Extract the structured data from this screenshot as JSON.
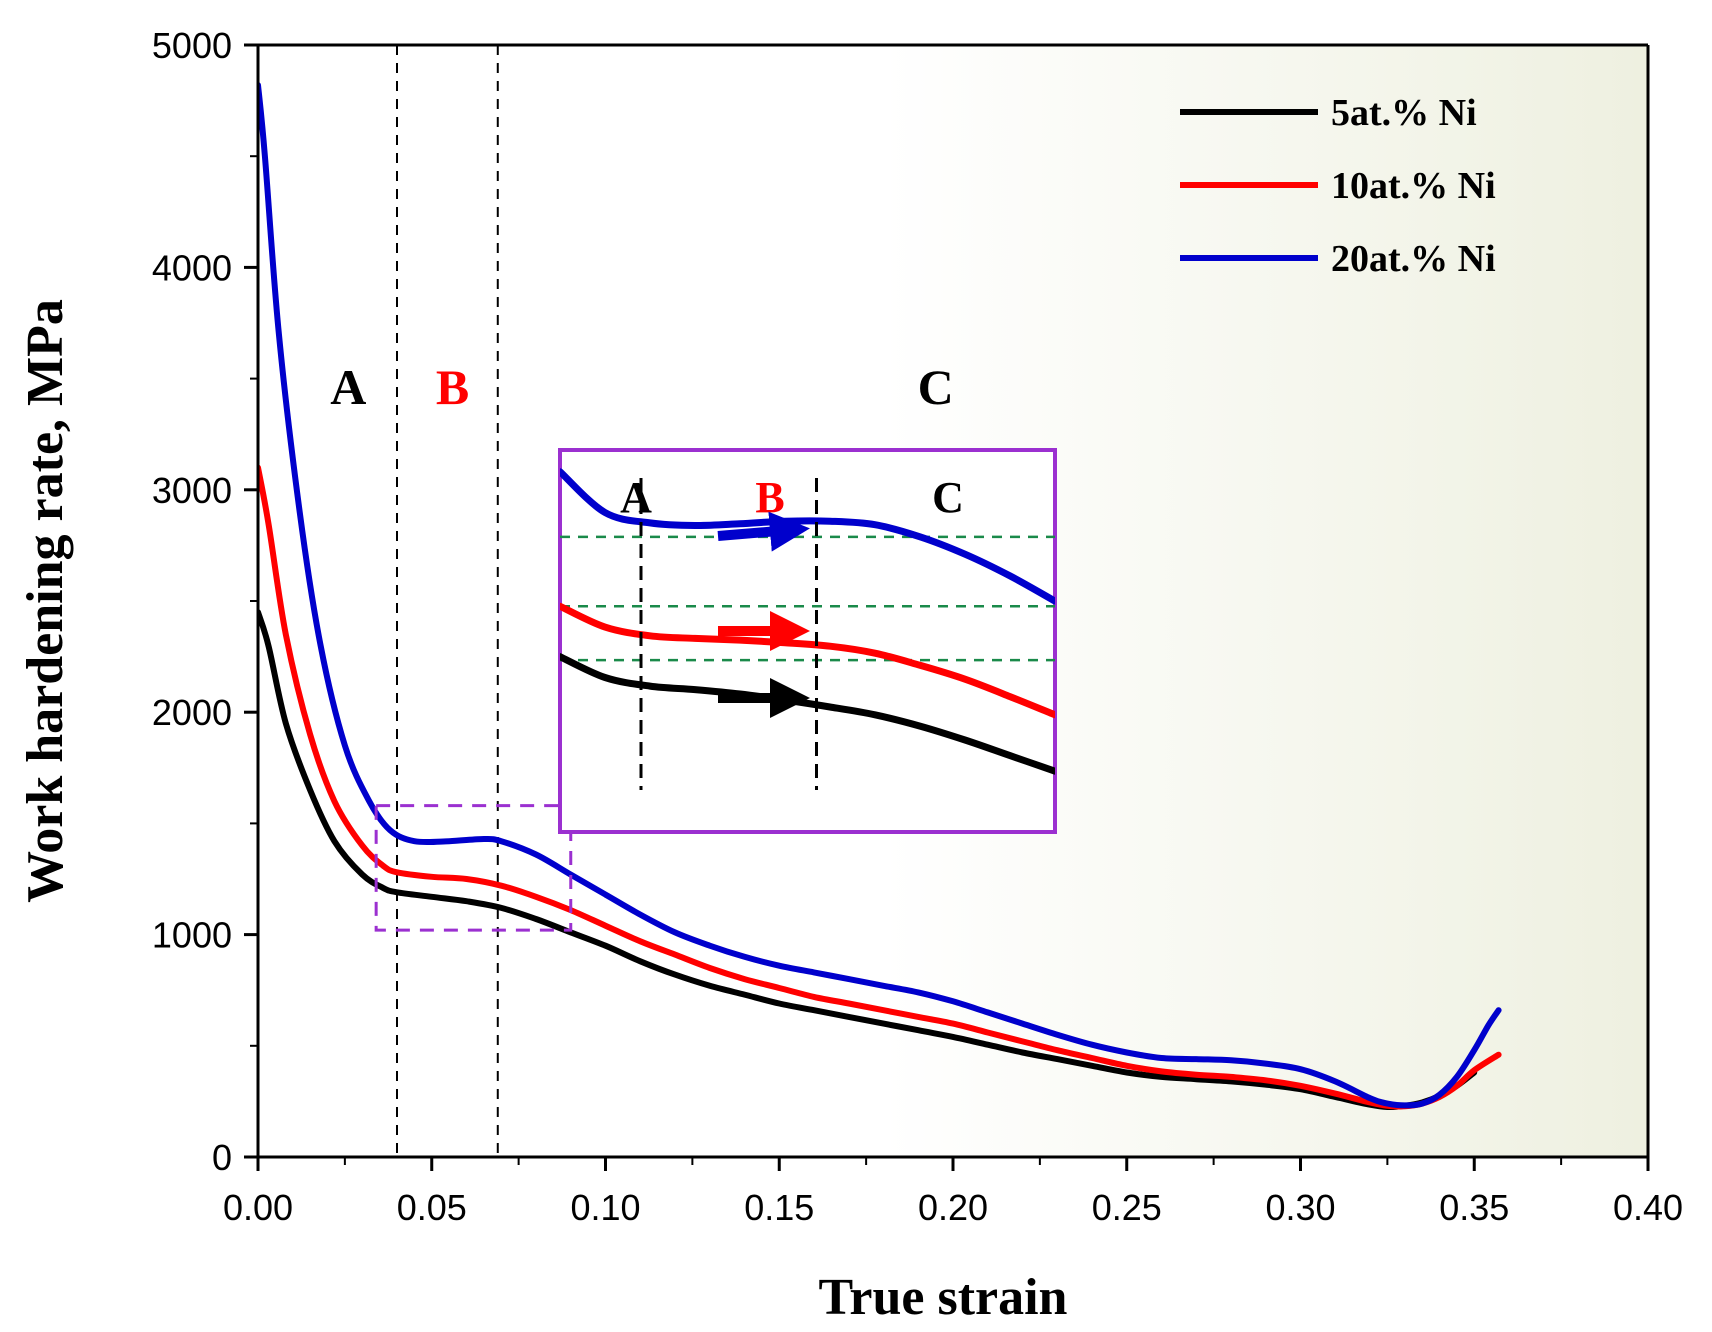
{
  "chart_data": {
    "type": "line",
    "xlabel": "True strain",
    "ylabel": "Work hardening rate, MPa",
    "xlim": [
      0,
      0.4
    ],
    "ylim": [
      0,
      5000
    ],
    "x_ticks": [
      "0.00",
      "0.05",
      "0.10",
      "0.15",
      "0.20",
      "0.25",
      "0.30",
      "0.35",
      "0.40"
    ],
    "y_ticks": [
      "0",
      "1000",
      "2000",
      "3000",
      "4000",
      "5000"
    ],
    "x_tick_values": [
      0,
      0.05,
      0.1,
      0.15,
      0.2,
      0.25,
      0.3,
      0.35,
      0.4
    ],
    "y_tick_values": [
      0,
      1000,
      2000,
      3000,
      4000,
      5000
    ],
    "legend_position": "top-right",
    "region_boundaries": [
      0.04,
      0.069
    ],
    "regions": [
      {
        "label": "A",
        "color": "#000000",
        "x": 0.026
      },
      {
        "label": "B",
        "color": "#ff0000",
        "x": 0.056
      },
      {
        "label": "C",
        "color": "#000000",
        "x": 0.195
      }
    ],
    "series": [
      {
        "name": "5at.% Ni",
        "color": "#000000",
        "x": [
          0,
          0.003,
          0.008,
          0.015,
          0.022,
          0.03,
          0.036,
          0.04,
          0.05,
          0.06,
          0.07,
          0.08,
          0.09,
          0.1,
          0.11,
          0.12,
          0.13,
          0.14,
          0.15,
          0.16,
          0.17,
          0.18,
          0.19,
          0.2,
          0.21,
          0.22,
          0.23,
          0.24,
          0.25,
          0.26,
          0.27,
          0.28,
          0.29,
          0.3,
          0.31,
          0.32,
          0.325,
          0.33,
          0.335,
          0.34,
          0.345,
          0.35
        ],
        "y": [
          2450,
          2300,
          1950,
          1650,
          1420,
          1270,
          1210,
          1190,
          1170,
          1150,
          1120,
          1070,
          1010,
          950,
          880,
          820,
          770,
          730,
          690,
          660,
          630,
          600,
          570,
          540,
          505,
          470,
          440,
          410,
          380,
          360,
          350,
          340,
          325,
          305,
          270,
          235,
          225,
          230,
          245,
          275,
          320,
          380
        ]
      },
      {
        "name": "10at.% Ni",
        "color": "#ff0000",
        "x": [
          0,
          0.003,
          0.008,
          0.015,
          0.022,
          0.03,
          0.036,
          0.04,
          0.05,
          0.06,
          0.07,
          0.08,
          0.09,
          0.1,
          0.11,
          0.12,
          0.13,
          0.14,
          0.15,
          0.16,
          0.17,
          0.18,
          0.19,
          0.2,
          0.21,
          0.22,
          0.23,
          0.24,
          0.25,
          0.26,
          0.27,
          0.28,
          0.29,
          0.3,
          0.31,
          0.32,
          0.325,
          0.33,
          0.335,
          0.34,
          0.345,
          0.35,
          0.357
        ],
        "y": [
          3100,
          2850,
          2350,
          1900,
          1600,
          1400,
          1310,
          1280,
          1260,
          1250,
          1220,
          1170,
          1110,
          1040,
          970,
          910,
          850,
          800,
          760,
          720,
          690,
          660,
          630,
          600,
          560,
          520,
          480,
          445,
          410,
          385,
          370,
          360,
          345,
          320,
          285,
          245,
          230,
          228,
          240,
          270,
          320,
          390,
          460
        ]
      },
      {
        "name": "20at.% Ni",
        "color": "#0000cc",
        "x": [
          0,
          0.002,
          0.006,
          0.012,
          0.018,
          0.025,
          0.032,
          0.038,
          0.045,
          0.055,
          0.065,
          0.07,
          0.08,
          0.09,
          0.1,
          0.11,
          0.12,
          0.13,
          0.14,
          0.15,
          0.16,
          0.17,
          0.18,
          0.19,
          0.2,
          0.21,
          0.22,
          0.23,
          0.24,
          0.25,
          0.26,
          0.27,
          0.28,
          0.29,
          0.3,
          0.31,
          0.32,
          0.325,
          0.33,
          0.335,
          0.34,
          0.345,
          0.35,
          0.354,
          0.357
        ],
        "y": [
          4820,
          4500,
          3700,
          2900,
          2300,
          1850,
          1600,
          1470,
          1420,
          1420,
          1430,
          1420,
          1360,
          1270,
          1180,
          1090,
          1010,
          950,
          900,
          860,
          830,
          800,
          770,
          740,
          700,
          650,
          600,
          550,
          505,
          470,
          445,
          440,
          435,
          420,
          395,
          340,
          265,
          240,
          232,
          240,
          280,
          360,
          480,
          590,
          660
        ]
      }
    ],
    "inset": {
      "regions": [
        {
          "label": "A",
          "color": "#000000"
        },
        {
          "label": "B",
          "color": "#ff0000"
        },
        {
          "label": "C",
          "color": "#000000"
        }
      ]
    },
    "colors": {
      "plot_background_gradient_end": "#eef0e0",
      "zoom_box": "#9b30d0",
      "reference_lines": "#1a8a4a"
    }
  }
}
